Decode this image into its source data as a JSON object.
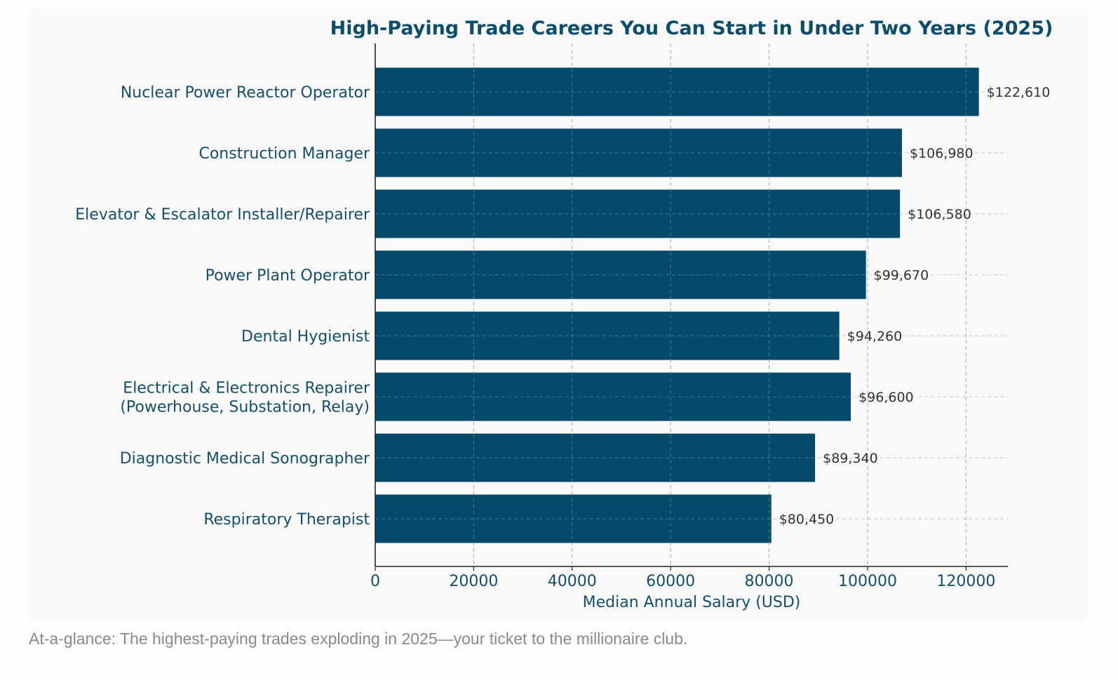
{
  "caption": "At-a-glance: The highest-paying trades exploding in 2025—your ticket to the millionaire club.",
  "colors": {
    "bar": "#054a6b",
    "title": "#0b4d6b",
    "category_label": "#134f6e",
    "value_label": "#333333",
    "axis": "#222222",
    "grid": "#c8c8c8",
    "card": "#f9f9fa"
  },
  "chart_data": {
    "type": "bar",
    "orientation": "horizontal",
    "title": "High-Paying Trade Careers You Can Start in Under Two Years (2025)",
    "xlabel": "Median Annual Salary (USD)",
    "ylabel": "",
    "xlim": [
      0,
      128500
    ],
    "x_ticks": [
      0,
      20000,
      40000,
      60000,
      80000,
      100000,
      120000
    ],
    "x_tick_labels": [
      "0",
      "20000",
      "40000",
      "60000",
      "80000",
      "100000",
      "120000"
    ],
    "grid": true,
    "categories": [
      [
        "Nuclear Power Reactor Operator"
      ],
      [
        "Construction Manager"
      ],
      [
        "Elevator & Escalator Installer/Repairer"
      ],
      [
        "Power Plant Operator"
      ],
      [
        "Dental Hygienist"
      ],
      [
        "Electrical & Electronics Repairer",
        "(Powerhouse, Substation, Relay)"
      ],
      [
        "Diagnostic Medical Sonographer"
      ],
      [
        "Respiratory Therapist"
      ]
    ],
    "values": [
      122610,
      106980,
      106580,
      99670,
      94260,
      96600,
      89340,
      80450
    ],
    "value_labels": [
      "$122,610",
      "$106,980",
      "$106,580",
      "$99,670",
      "$94,260",
      "$96,600",
      "$89,340",
      "$80,450"
    ]
  }
}
